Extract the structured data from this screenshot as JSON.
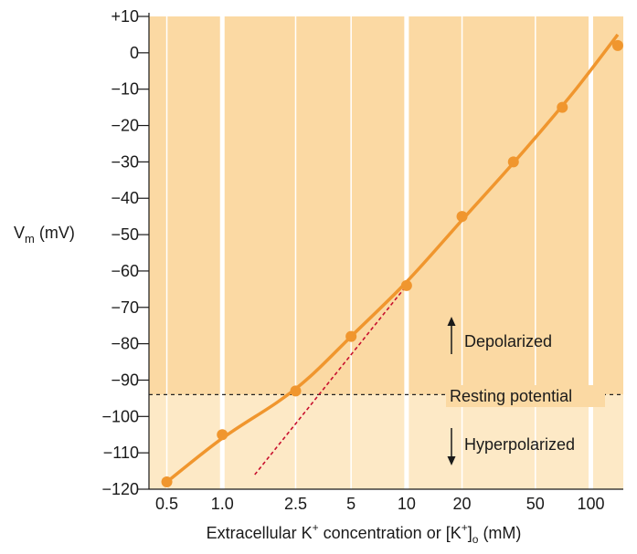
{
  "chart_data": {
    "type": "scatter",
    "title": "",
    "ylabel_main": "V",
    "ylabel_sub": "m",
    "ylabel_unit": " (mV)",
    "xlabel_prefix": "Extracellular K",
    "xlabel_sup": "+",
    "xlabel_mid": " concentration or [K",
    "xlabel_sup2": "+",
    "xlabel_close": "]",
    "xlabel_sub": "o",
    "xlabel_suffix": " (mM)",
    "x_scale": "log",
    "xlim": [
      0.4,
      150
    ],
    "ylim": [
      -120,
      10
    ],
    "x_ticks": [
      0.5,
      1.0,
      2.5,
      5,
      10,
      20,
      50,
      100
    ],
    "x_tick_labels": [
      "0.5",
      "1.0",
      "2.5",
      "5",
      "10",
      "20",
      "50",
      "100"
    ],
    "y_ticks": [
      10,
      0,
      -10,
      -20,
      -30,
      -40,
      -50,
      -60,
      -70,
      -80,
      -90,
      -100,
      -110,
      -120
    ],
    "y_tick_labels": [
      "+10",
      "0",
      "−10",
      "−20",
      "−30",
      "−40",
      "−50",
      "−60",
      "−70",
      "−80",
      "−90",
      "−100",
      "−110",
      "−120"
    ],
    "points": [
      {
        "x": 0.5,
        "y": -118
      },
      {
        "x": 1.0,
        "y": -105
      },
      {
        "x": 2.5,
        "y": -93
      },
      {
        "x": 5,
        "y": -78
      },
      {
        "x": 10,
        "y": -64
      },
      {
        "x": 20,
        "y": -45
      },
      {
        "x": 38,
        "y": -30
      },
      {
        "x": 70,
        "y": -15
      },
      {
        "x": 140,
        "y": 2
      }
    ],
    "fit_curve": [
      {
        "x": 0.5,
        "y": -118
      },
      {
        "x": 1.0,
        "y": -106
      },
      {
        "x": 2.0,
        "y": -96
      },
      {
        "x": 3.0,
        "y": -89
      },
      {
        "x": 5,
        "y": -78
      },
      {
        "x": 10,
        "y": -63
      },
      {
        "x": 20,
        "y": -46
      },
      {
        "x": 40,
        "y": -29
      },
      {
        "x": 80,
        "y": -11
      },
      {
        "x": 140,
        "y": 5
      }
    ],
    "nernst_line": [
      {
        "x": 1.5,
        "y": -116
      },
      {
        "x": 10,
        "y": -64
      }
    ],
    "resting_potential": -94,
    "annotations": {
      "resting": "Resting potential",
      "depolarized": "Depolarized",
      "hyperpolarized": "Hyperpolarized"
    },
    "colors": {
      "curve": "#f0962e",
      "points": "#f0962e",
      "nernst": "#c8102e",
      "band_upper": "#fbd9a3",
      "band_lower": "#fde9c6",
      "gridline": "#ffffff",
      "resting_line": "#222222"
    },
    "grid": "vertical"
  }
}
